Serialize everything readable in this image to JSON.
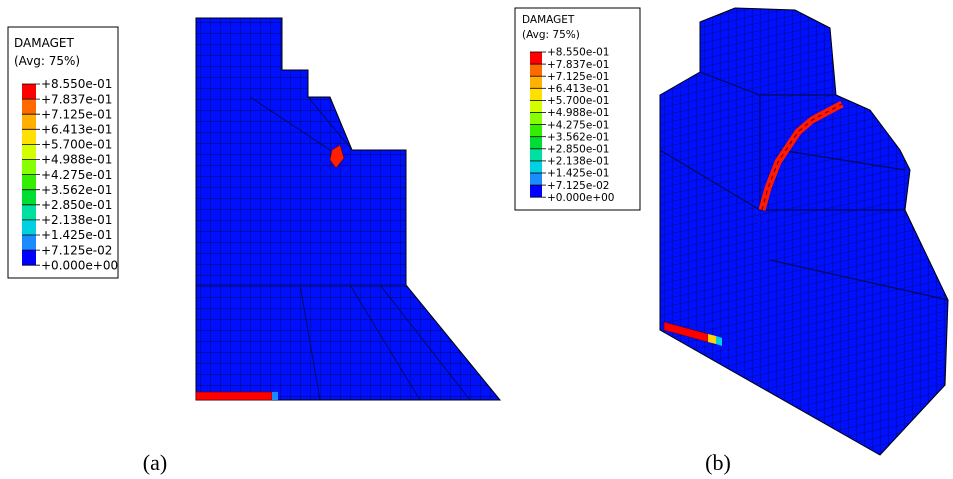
{
  "panels": [
    {
      "legend": {
        "title": "DAMAGET",
        "subtitle": "(Avg: 75%)",
        "levels": [
          "+8.550e-01",
          "+7.837e-01",
          "+7.125e-01",
          "+6.413e-01",
          "+5.700e-01",
          "+4.988e-01",
          "+4.275e-01",
          "+3.562e-01",
          "+2.850e-01",
          "+2.138e-01",
          "+1.425e-01",
          "+7.125e-02",
          "+0.000e+00"
        ]
      },
      "caption": "(a)"
    },
    {
      "legend": {
        "title": "DAMAGET",
        "subtitle": "(Avg: 75%)",
        "levels": [
          "+8.550e-01",
          "+7.837e-01",
          "+7.125e-01",
          "+6.413e-01",
          "+5.700e-01",
          "+4.988e-01",
          "+4.275e-01",
          "+3.562e-01",
          "+2.850e-01",
          "+2.138e-01",
          "+1.425e-01",
          "+7.125e-02",
          "+0.000e+00"
        ]
      },
      "caption": "(b)"
    }
  ]
}
